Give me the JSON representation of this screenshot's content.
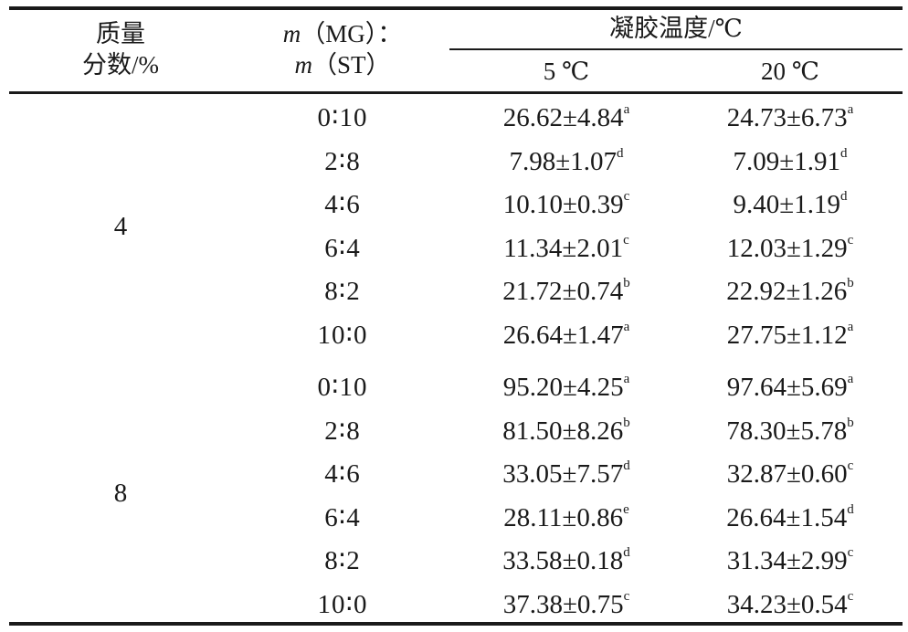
{
  "table": {
    "headers": {
      "col1_line1": "质量",
      "col1_line2": "分数/%",
      "col2_line1_var": "m",
      "col2_line1_rest": "（MG）：",
      "col2_line2_var": "m",
      "col2_line2_rest": "（ST）",
      "col3_group": "凝胶温度/℃",
      "col3_sub1": "5 ℃",
      "col3_sub2": "20 ℃"
    },
    "groups": [
      {
        "mass_fraction": "4",
        "rows": [
          {
            "ratio": "0∶10",
            "v5": "26.62±4.84",
            "s5": "a",
            "v20": "24.73±6.73",
            "s20": "a"
          },
          {
            "ratio": "2∶8",
            "v5": "7.98±1.07",
            "s5": "d",
            "v20": "7.09±1.91",
            "s20": "d"
          },
          {
            "ratio": "4∶6",
            "v5": "10.10±0.39",
            "s5": "c",
            "v20": "9.40±1.19",
            "s20": "d"
          },
          {
            "ratio": "6∶4",
            "v5": "11.34±2.01",
            "s5": "c",
            "v20": "12.03±1.29",
            "s20": "c"
          },
          {
            "ratio": "8∶2",
            "v5": "21.72±0.74",
            "s5": "b",
            "v20": "22.92±1.26",
            "s20": "b"
          },
          {
            "ratio": "10∶0",
            "v5": "26.64±1.47",
            "s5": "a",
            "v20": "27.75±1.12",
            "s20": "a"
          }
        ]
      },
      {
        "mass_fraction": "8",
        "rows": [
          {
            "ratio": "0∶10",
            "v5": "95.20±4.25",
            "s5": "a",
            "v20": "97.64±5.69",
            "s20": "a"
          },
          {
            "ratio": "2∶8",
            "v5": "81.50±8.26",
            "s5": "b",
            "v20": "78.30±5.78",
            "s20": "b"
          },
          {
            "ratio": "4∶6",
            "v5": "33.05±7.57",
            "s5": "d",
            "v20": "32.87±0.60",
            "s20": "c"
          },
          {
            "ratio": "6∶4",
            "v5": "28.11±0.86",
            "s5": "e",
            "v20": "26.64±1.54",
            "s20": "d"
          },
          {
            "ratio": "8∶2",
            "v5": "33.58±0.18",
            "s5": "d",
            "v20": "31.34±2.99",
            "s20": "c"
          },
          {
            "ratio": "10∶0",
            "v5": "37.38±0.75",
            "s5": "c",
            "v20": "34.23±0.54",
            "s20": "c"
          }
        ]
      }
    ]
  }
}
